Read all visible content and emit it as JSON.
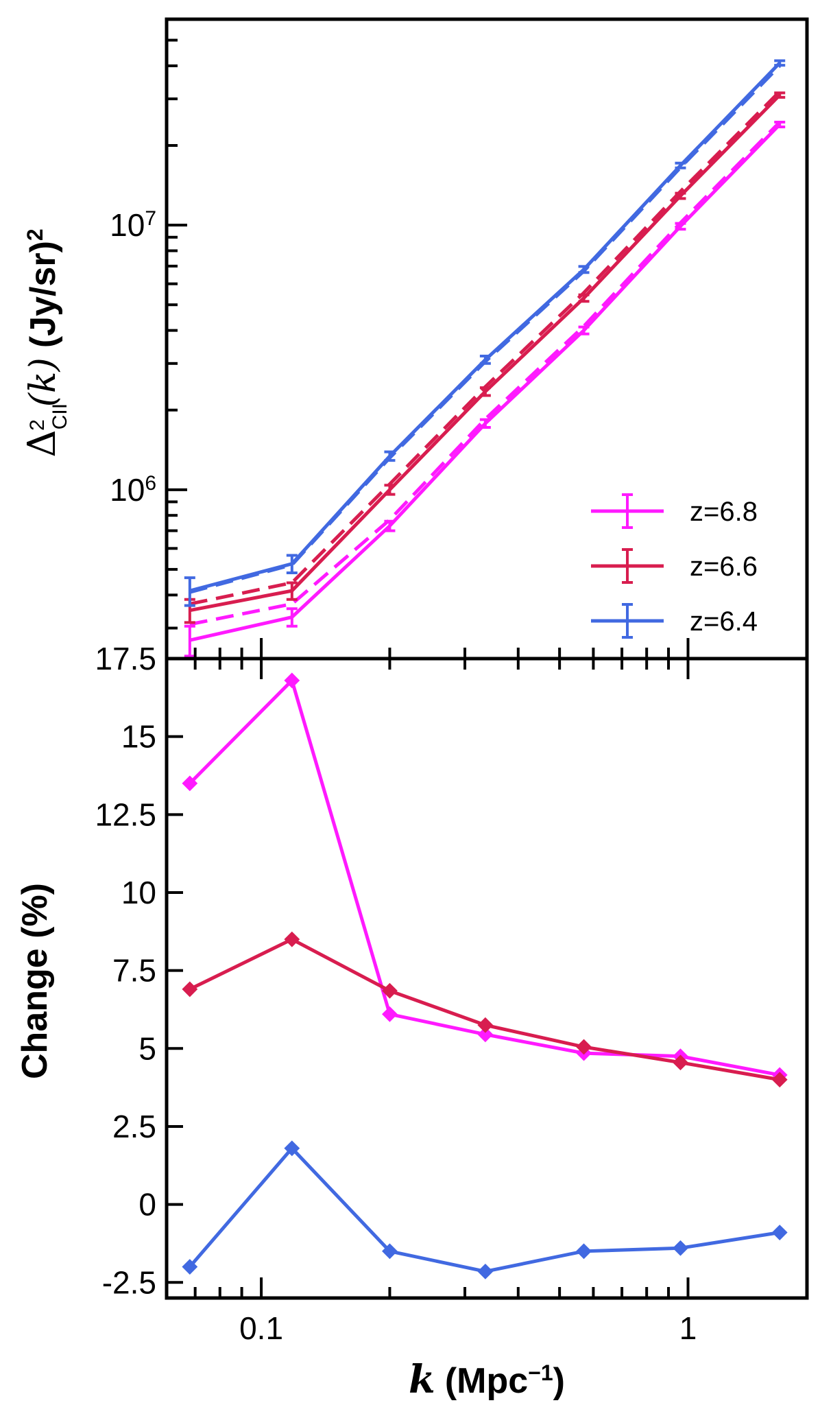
{
  "chart_data": [
    {
      "type": "line",
      "panel": "top",
      "yscale": "log",
      "xscale": "log",
      "ylabel": "(Jy/sr)",
      "ylabel_prefix": "Δ",
      "ylabel_sub": "CII",
      "ylabel_sup": "2",
      "ylabel_arg": "(k)",
      "ylabel_exp": "2",
      "ylim": [
        230000,
        60000000
      ],
      "xlim": [
        0.06,
        1.9
      ],
      "ytick_labels": [
        {
          "value": 1000000,
          "base": "10",
          "exp": "6"
        },
        {
          "value": 10000000,
          "base": "10",
          "exp": "7"
        }
      ],
      "x": [
        0.068,
        0.118,
        0.2,
        0.335,
        0.57,
        0.96,
        1.64
      ],
      "series": [
        {
          "name": "z=6.8",
          "color": "#ff1aff",
          "values": [
            270000,
            330000,
            730000,
            1780000,
            4000000,
            9900000,
            24000000
          ],
          "dashed_values": [
            310000,
            370000,
            770000,
            1850000,
            4150000,
            10200000,
            24500000
          ],
          "errors": [
            35000,
            25000,
            30000,
            60000,
            120000,
            250000,
            500000
          ]
        },
        {
          "name": "z=6.6",
          "color": "#d81d4f",
          "values": [
            350000,
            415000,
            1000000,
            2350000,
            5300000,
            12900000,
            31000000
          ],
          "dashed_values": [
            370000,
            445000,
            1050000,
            2450000,
            5550000,
            13400000,
            32000000
          ],
          "errors": [
            35000,
            30000,
            40000,
            80000,
            150000,
            300000,
            600000
          ]
        },
        {
          "name": "z=6.4",
          "color": "#4169e1",
          "values": [
            415000,
            525000,
            1340000,
            3100000,
            6800000,
            16800000,
            41000000
          ],
          "dashed_values": [
            410000,
            520000,
            1320000,
            3050000,
            6700000,
            16500000,
            40000000
          ],
          "errors": [
            50000,
            40000,
            50000,
            100000,
            180000,
            350000,
            800000
          ]
        }
      ],
      "legend": {
        "position": "lower-right",
        "entries": [
          "z=6.8",
          "z=6.6",
          "z=6.4"
        ]
      }
    },
    {
      "type": "line",
      "panel": "bottom",
      "xscale": "log",
      "xlabel": "k",
      "xlabel_unit_pre": "(Mpc",
      "xlabel_unit_sup": "−1",
      "xlabel_unit_post": ")",
      "ylabel": "Change (%)",
      "ylim": [
        -3.0,
        17.5
      ],
      "xlim": [
        0.06,
        1.9
      ],
      "yticks": [
        -2.5,
        0,
        2.5,
        5,
        7.5,
        10,
        12.5,
        15,
        17.5
      ],
      "ytick_labels": [
        "-2.5",
        "0",
        "2.5",
        "5",
        "7.5",
        "10",
        "12.5",
        "15",
        "17.5"
      ],
      "xticks": [
        0.1,
        1
      ],
      "xtick_labels": [
        "0.1",
        "1"
      ],
      "x": [
        0.068,
        0.118,
        0.2,
        0.335,
        0.57,
        0.96,
        1.64
      ],
      "series": [
        {
          "name": "z=6.8",
          "color": "#ff1aff",
          "values": [
            13.5,
            16.8,
            6.1,
            5.45,
            4.85,
            4.75,
            4.15
          ]
        },
        {
          "name": "z=6.6",
          "color": "#d81d4f",
          "values": [
            6.9,
            8.5,
            6.85,
            5.75,
            5.05,
            4.55,
            4.0
          ]
        },
        {
          "name": "z=6.4",
          "color": "#4169e1",
          "values": [
            -2.0,
            1.8,
            -1.5,
            -2.15,
            -1.5,
            -1.4,
            -0.9
          ]
        }
      ]
    }
  ]
}
